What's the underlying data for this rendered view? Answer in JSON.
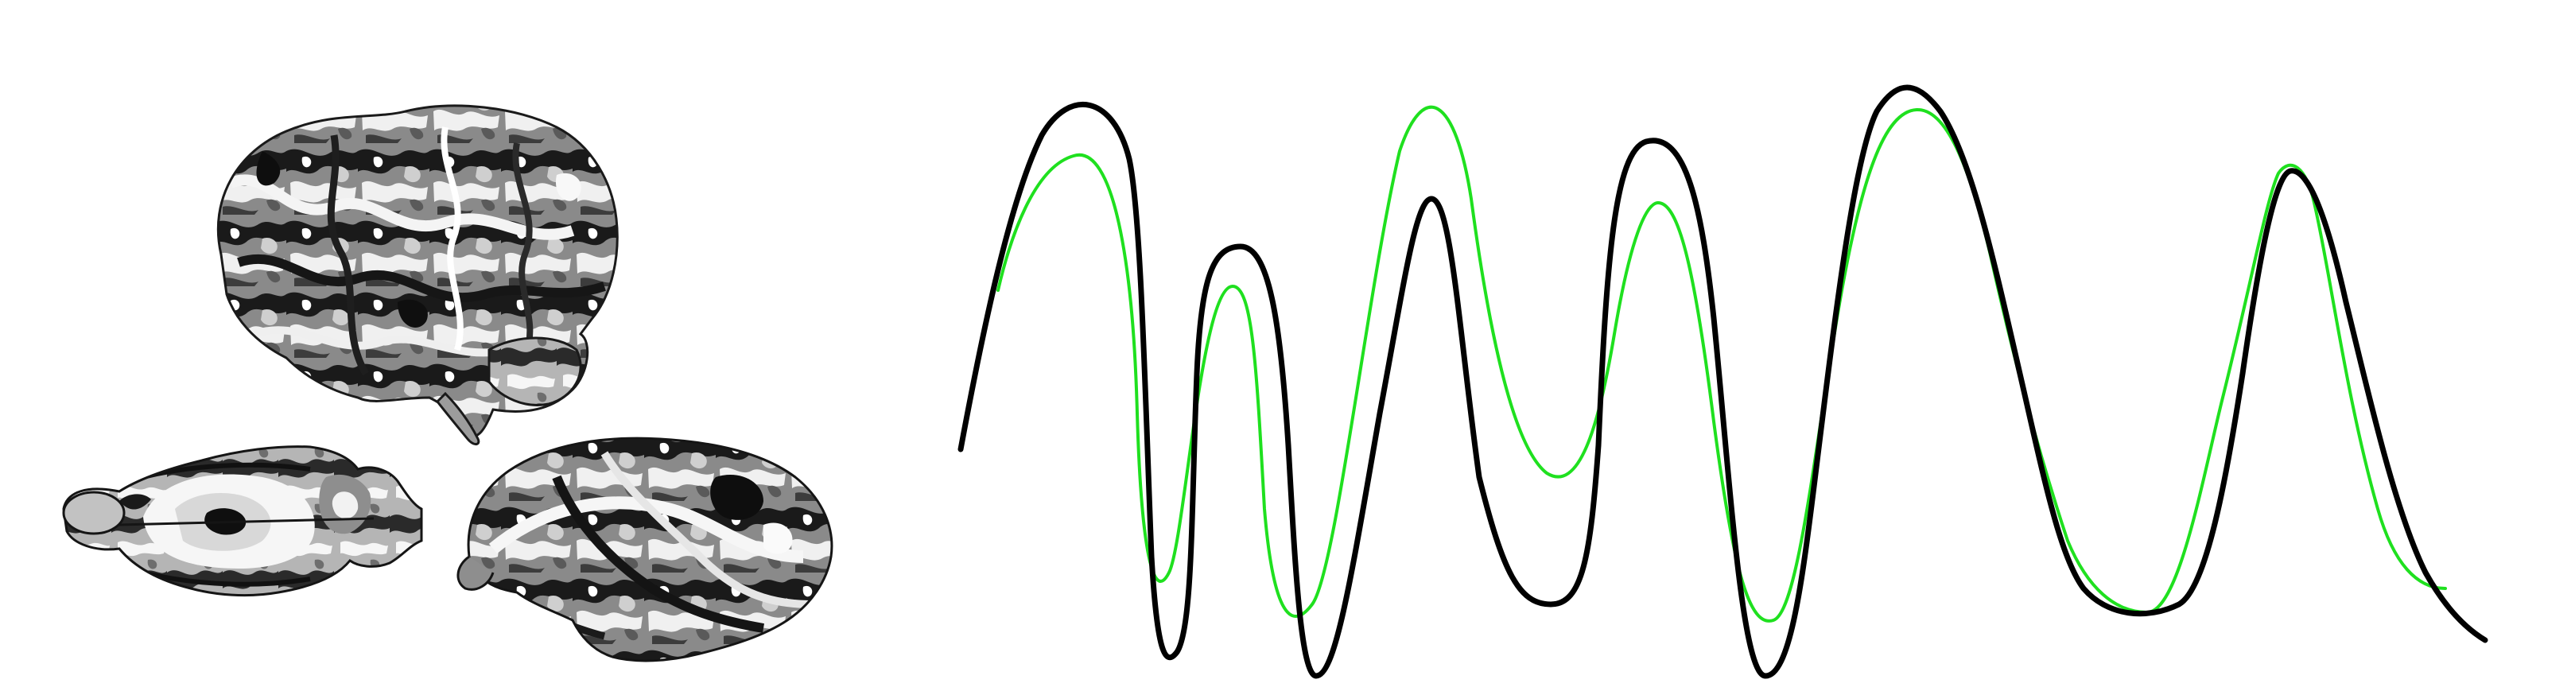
{
  "figure": {
    "background": "#ffffff",
    "brains": [
      {
        "name": "human-brain-lateral",
        "view": "lateral",
        "palette": [
          "#111111",
          "#3a3a3a",
          "#6a6a6a",
          "#9a9a9a",
          "#c8c8c8",
          "#f2f2f2"
        ]
      },
      {
        "name": "rodent-brain-dorsal",
        "view": "dorsal",
        "palette": [
          "#111111",
          "#3a3a3a",
          "#6a6a6a",
          "#9a9a9a",
          "#c8c8c8",
          "#f2f2f2"
        ]
      },
      {
        "name": "macaque-brain-lateral",
        "view": "lateral",
        "palette": [
          "#111111",
          "#3a3a3a",
          "#6a6a6a",
          "#9a9a9a",
          "#c8c8c8",
          "#f2f2f2"
        ]
      }
    ],
    "signals": [
      {
        "name": "black-signal-trace",
        "color": "#000000"
      },
      {
        "name": "green-signal-trace",
        "color": "#1fe01f"
      }
    ]
  }
}
